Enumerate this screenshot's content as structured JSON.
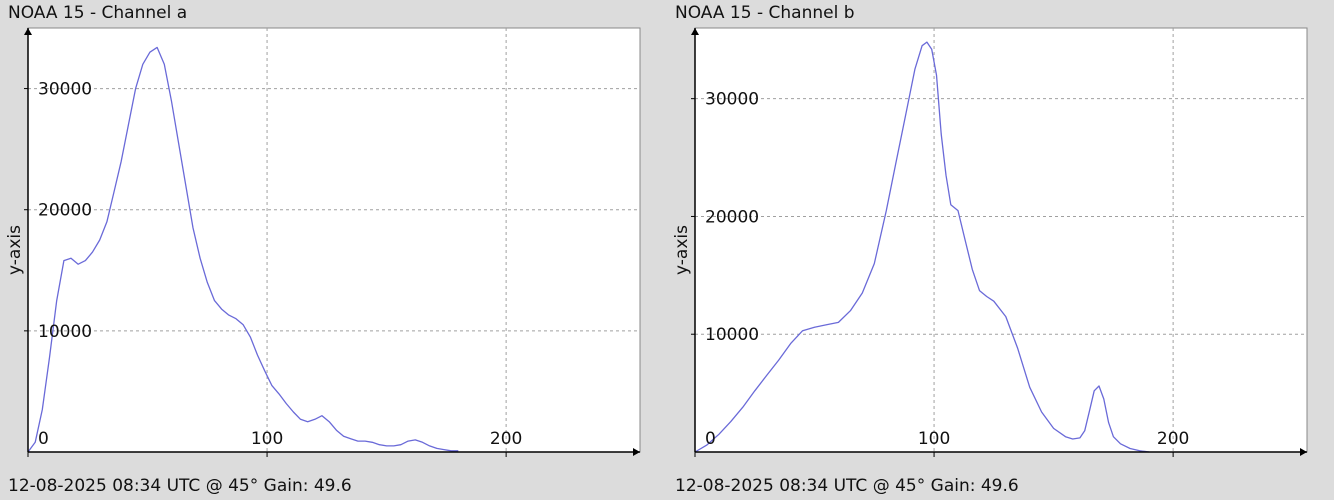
{
  "colors": {
    "background": "#dcdcdc",
    "plot_area": "#ffffff",
    "line": "#6a6ad8",
    "grid": "#a0a0a0",
    "axis": "#000000"
  },
  "chart_data": [
    {
      "type": "line",
      "title": "NOAA 15 - Channel a",
      "ylabel": "y-axis",
      "xlabel": "",
      "footer": "12-08-2025 08:34 UTC @ 45° Gain: 49.6",
      "xlim": [
        0,
        256
      ],
      "ylim": [
        0,
        35000
      ],
      "xticks": [
        0,
        100,
        200
      ],
      "yticks": [
        10000,
        20000,
        30000
      ],
      "grid": true,
      "series": [
        {
          "x": [
            0,
            3,
            6,
            9,
            12,
            15,
            18,
            21,
            24,
            27,
            30,
            33,
            36,
            39,
            42,
            45,
            48,
            51,
            54,
            57,
            60,
            63,
            66,
            69,
            72,
            75,
            78,
            81,
            84,
            87,
            90,
            93,
            96,
            99,
            102,
            105,
            108,
            111,
            114,
            117,
            120,
            123,
            126,
            129,
            132,
            135,
            138,
            141,
            144,
            147,
            150,
            153,
            156,
            159,
            162,
            165,
            168,
            171,
            174,
            177,
            180
          ],
          "y": [
            0,
            800,
            3500,
            7800,
            12500,
            15800,
            16000,
            15500,
            15800,
            16500,
            17500,
            19000,
            21500,
            24000,
            27000,
            30000,
            32000,
            33000,
            33400,
            32000,
            29000,
            25500,
            22000,
            18500,
            16000,
            14000,
            12500,
            11800,
            11300,
            11000,
            10500,
            9500,
            8000,
            6700,
            5500,
            4800,
            4000,
            3300,
            2700,
            2500,
            2700,
            3000,
            2500,
            1800,
            1300,
            1100,
            900,
            900,
            800,
            600,
            500,
            500,
            600,
            900,
            1000,
            800,
            500,
            300,
            200,
            100,
            100
          ]
        }
      ]
    },
    {
      "type": "line",
      "title": "NOAA 15 - Channel b",
      "ylabel": "y-axis",
      "xlabel": "",
      "footer": "12-08-2025 08:34 UTC @ 45° Gain: 49.6",
      "xlim": [
        0,
        256
      ],
      "ylim": [
        0,
        36000
      ],
      "xticks": [
        0,
        100,
        200
      ],
      "yticks": [
        10000,
        20000,
        30000
      ],
      "grid": true,
      "series": [
        {
          "x": [
            0,
            5,
            10,
            15,
            20,
            25,
            30,
            35,
            40,
            45,
            50,
            55,
            60,
            65,
            70,
            75,
            80,
            84,
            88,
            92,
            95,
            97,
            99,
            101,
            103,
            105,
            107,
            110,
            113,
            116,
            119,
            122,
            125,
            130,
            135,
            140,
            145,
            150,
            155,
            158,
            161,
            163,
            165,
            167,
            169,
            171,
            173,
            175,
            178,
            182,
            186,
            190
          ],
          "y": [
            0,
            600,
            1500,
            2600,
            3800,
            5200,
            6500,
            7800,
            9200,
            10300,
            10600,
            10800,
            11000,
            12000,
            13500,
            16000,
            20500,
            24500,
            28500,
            32500,
            34500,
            34800,
            34200,
            32000,
            27000,
            23500,
            21000,
            20500,
            18000,
            15500,
            13700,
            13200,
            12800,
            11500,
            8800,
            5500,
            3400,
            2000,
            1300,
            1100,
            1200,
            1800,
            3500,
            5200,
            5600,
            4500,
            2500,
            1300,
            700,
            300,
            100,
            0
          ]
        }
      ]
    }
  ]
}
